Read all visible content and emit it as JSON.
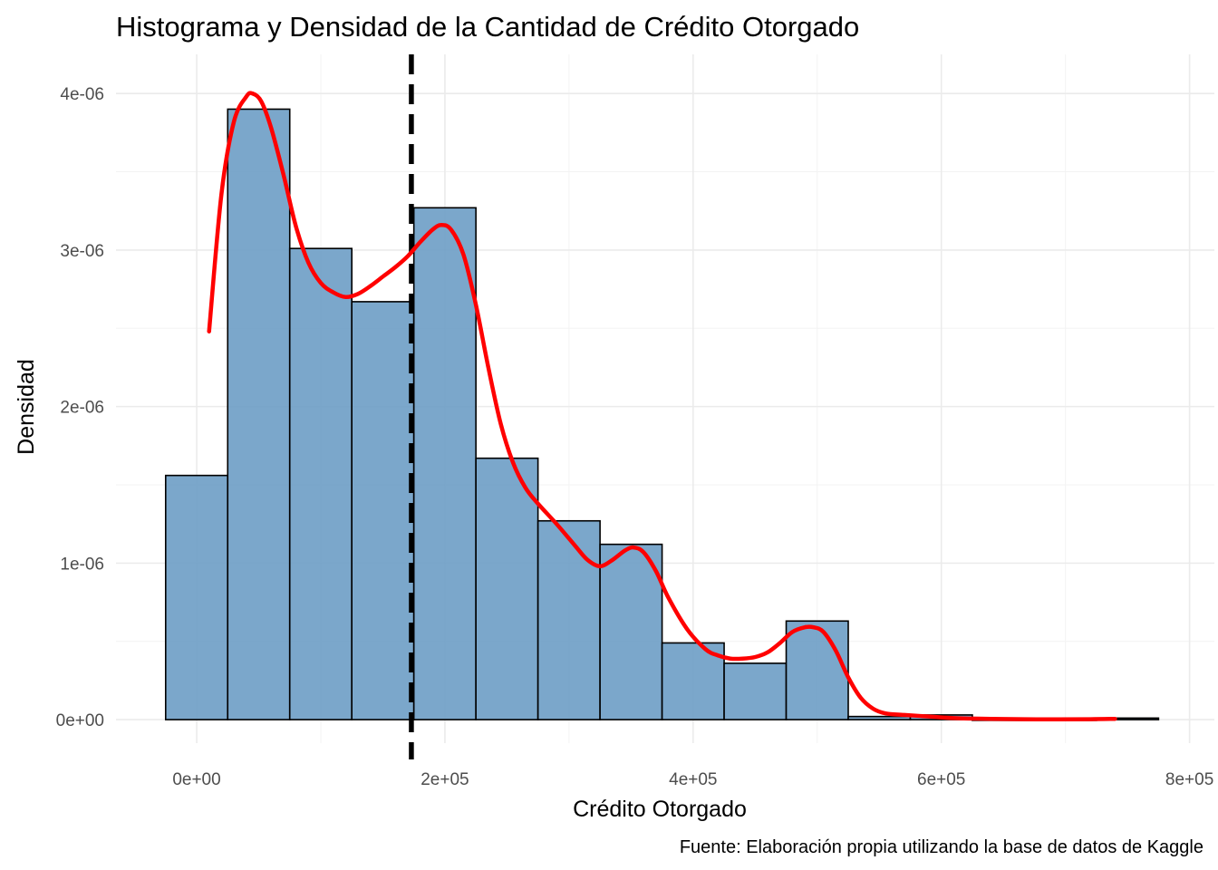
{
  "chart_data": {
    "type": "bar",
    "title": "Histograma y Densidad de la Cantidad de Crédito Otorgado",
    "xlabel": "Crédito Otorgado",
    "ylabel": "Densidad",
    "caption": "Fuente: Elaboración propia utilizando la base de datos de Kaggle",
    "xlim": [
      -65000,
      820000
    ],
    "ylim": [
      -1.5e-07,
      4.25e-06
    ],
    "x_ticks": [
      0,
      200000,
      400000,
      600000,
      800000
    ],
    "x_tick_labels": [
      "0e+00",
      "2e+05",
      "4e+05",
      "6e+05",
      "8e+05"
    ],
    "y_ticks": [
      0,
      1e-06,
      2e-06,
      3e-06,
      4e-06
    ],
    "y_tick_labels": [
      "0e+00",
      "1e-06",
      "2e-06",
      "3e-06",
      "4e-06"
    ],
    "grid": true,
    "bar_fill": "#6d9dc5",
    "bar_outline": "#000000",
    "density_color": "#ff0000",
    "reference_line_color": "#000000",
    "bins": [
      {
        "x_start": -25000,
        "x_end": 25000,
        "density": 1.56e-06
      },
      {
        "x_start": 25000,
        "x_end": 75000,
        "density": 3.9e-06
      },
      {
        "x_start": 75000,
        "x_end": 125000,
        "density": 3.01e-06
      },
      {
        "x_start": 125000,
        "x_end": 175000,
        "density": 2.67e-06
      },
      {
        "x_start": 175000,
        "x_end": 225000,
        "density": 3.27e-06
      },
      {
        "x_start": 225000,
        "x_end": 275000,
        "density": 1.67e-06
      },
      {
        "x_start": 275000,
        "x_end": 325000,
        "density": 1.27e-06
      },
      {
        "x_start": 325000,
        "x_end": 375000,
        "density": 1.12e-06
      },
      {
        "x_start": 375000,
        "x_end": 425000,
        "density": 4.9e-07
      },
      {
        "x_start": 425000,
        "x_end": 475000,
        "density": 3.6e-07
      },
      {
        "x_start": 475000,
        "x_end": 525000,
        "density": 6.3e-07
      },
      {
        "x_start": 525000,
        "x_end": 575000,
        "density": 2e-08
      },
      {
        "x_start": 575000,
        "x_end": 625000,
        "density": 3e-08
      },
      {
        "x_start": 625000,
        "x_end": 675000,
        "density": 0.0
      },
      {
        "x_start": 675000,
        "x_end": 725000,
        "density": 0.0
      },
      {
        "x_start": 725000,
        "x_end": 775000,
        "density": 1e-08
      }
    ],
    "density_curve": {
      "x": [
        10000,
        20000,
        30000,
        40000,
        45000,
        52000,
        60000,
        70000,
        80000,
        90000,
        100000,
        110000,
        120000,
        130000,
        140000,
        150000,
        160000,
        170000,
        180000,
        190000,
        197000,
        205000,
        215000,
        225000,
        235000,
        245000,
        255000,
        265000,
        275000,
        290000,
        305000,
        315000,
        325000,
        335000,
        345000,
        352000,
        360000,
        370000,
        380000,
        395000,
        410000,
        420000,
        430000,
        440000,
        450000,
        460000,
        470000,
        480000,
        490000,
        497000,
        505000,
        515000,
        525000,
        535000,
        545000,
        555000,
        570000,
        590000,
        610000,
        640000,
        680000,
        720000,
        740000
      ],
      "y": [
        2.48e-06,
        3.36e-06,
        3.82e-06,
        3.98e-06,
        4e-06,
        3.95e-06,
        3.78e-06,
        3.48e-06,
        3.15e-06,
        2.92e-06,
        2.79e-06,
        2.73e-06,
        2.7e-06,
        2.72e-06,
        2.77e-06,
        2.83e-06,
        2.89e-06,
        2.96e-06,
        3.05e-06,
        3.13e-06,
        3.16e-06,
        3.13e-06,
        2.97e-06,
        2.65e-06,
        2.25e-06,
        1.89e-06,
        1.64e-06,
        1.48e-06,
        1.38e-06,
        1.25e-06,
        1.11e-06,
        1.02e-06,
        9.8e-07,
        1.02e-06,
        1.08e-06,
        1.1e-06,
        1.07e-06,
        9.5e-07,
        7.8e-07,
        5.8e-07,
        4.5e-07,
        4.1e-07,
        3.9e-07,
        3.9e-07,
        4e-07,
        4.3e-07,
        4.9e-07,
        5.6e-07,
        5.9e-07,
        5.9e-07,
        5.6e-07,
        4.4e-07,
        2.7e-07,
        1.4e-07,
        7e-08,
        4e-08,
        3e-08,
        2e-08,
        1e-08,
        5e-09,
        2e-09,
        3e-09,
        5e-09
      ]
    },
    "reference_line_x": 173000
  }
}
